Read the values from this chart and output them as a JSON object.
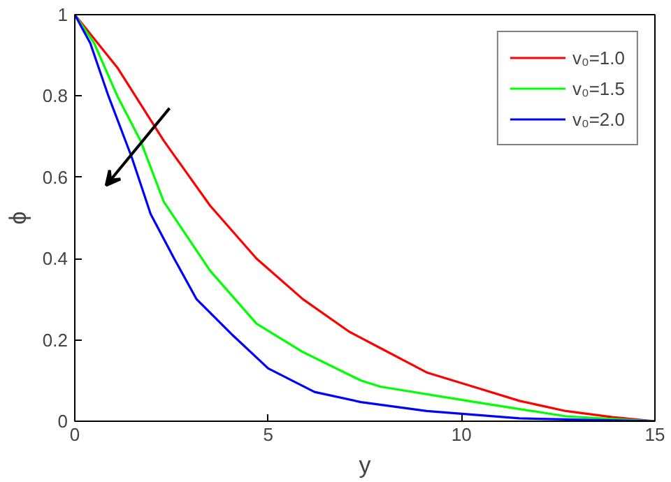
{
  "chart_data": {
    "type": "line",
    "xlabel": "y",
    "ylabel": "ϕ",
    "xlim": [
      0,
      15
    ],
    "ylim": [
      0,
      1
    ],
    "xticks": [
      0,
      5,
      10,
      15
    ],
    "yticks": [
      0,
      0.2,
      0.4,
      0.6,
      0.8,
      1
    ],
    "grid": false,
    "legend": "top right",
    "marker": "none",
    "line_style": "solid",
    "series": [
      {
        "name": "v₀=1.0",
        "color": "#ff0000",
        "x": [
          0,
          1.1,
          2.3,
          3.5,
          4.7,
          5.9,
          7.1,
          7.9,
          9.1,
          10.3,
          11.5,
          12.7,
          13.9,
          15
        ],
        "values": [
          1,
          0.87,
          0.69,
          0.53,
          0.4,
          0.3,
          0.22,
          0.18,
          0.12,
          0.085,
          0.05,
          0.025,
          0.01,
          0
        ]
      },
      {
        "name": "v₀=1.5",
        "color": "#00ff00",
        "x": [
          0,
          0.5,
          1.1,
          1.7,
          2.3,
          3.5,
          4.7,
          5.9,
          7.4,
          7.9,
          10.3,
          12.7,
          15
        ],
        "values": [
          1,
          0.93,
          0.8,
          0.69,
          0.54,
          0.37,
          0.24,
          0.17,
          0.1,
          0.085,
          0.048,
          0.012,
          0
        ]
      },
      {
        "name": "v₀=2.0",
        "color": "#0000ff",
        "x": [
          0,
          0.4,
          0.87,
          1.47,
          1.96,
          2.57,
          3.15,
          4.1,
          5.0,
          6.2,
          7.4,
          9.1,
          11.5,
          15
        ],
        "values": [
          1,
          0.93,
          0.8,
          0.65,
          0.51,
          0.4,
          0.3,
          0.21,
          0.13,
          0.072,
          0.047,
          0.025,
          0.007,
          0
        ]
      }
    ]
  }
}
